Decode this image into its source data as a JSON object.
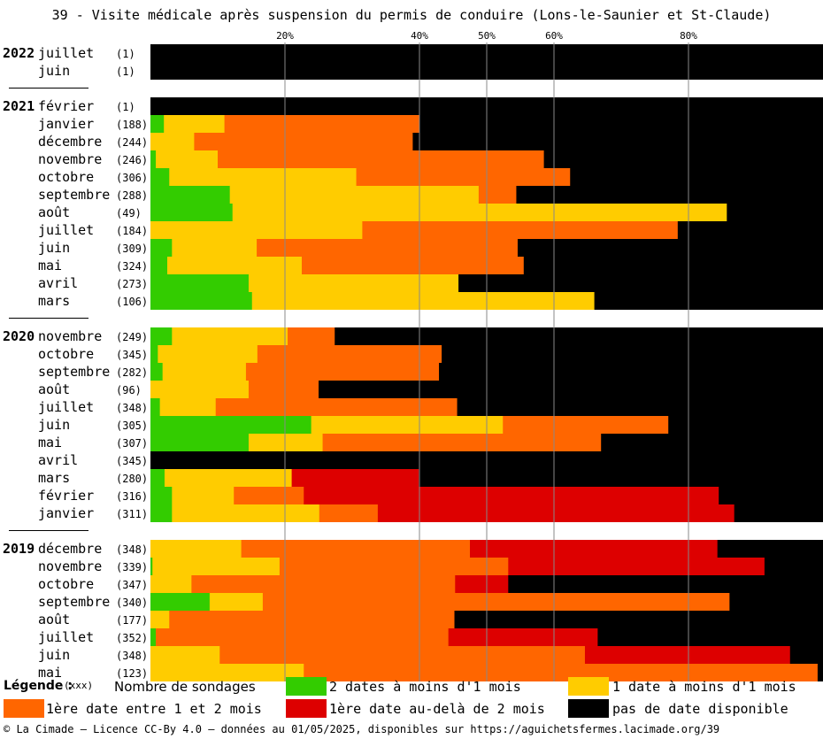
{
  "title": "39 - Visite médicale après suspension du permis de conduire (Lons-le-Saunier et St-Claude)",
  "footer": "© La Cimade – Licence CC-By 4.0 – données au 01/05/2025, disponibles sur https://aguichetsfermes.lacimade.org/39",
  "legend": {
    "title": "Légende :",
    "count_note": "(xxx)",
    "count_desc": "Nombre de sondages",
    "items": [
      {
        "label": "2 dates à moins d'1 mois",
        "color": "#33cc00"
      },
      {
        "label": "1 date à moins d'1 mois",
        "color": "#ffcc00"
      },
      {
        "label": "1ère date entre 1 et 2 mois",
        "color": "#ff6600"
      },
      {
        "label": "1ère date au-delà de 2 mois",
        "color": "#dd0000"
      },
      {
        "label": "pas de date disponible",
        "color": "#000000"
      }
    ]
  },
  "chart_data": {
    "type": "bar",
    "orientation": "horizontal",
    "stacked": true,
    "unit": "percent",
    "xlim": [
      0,
      100
    ],
    "x_ticks": [
      20,
      40,
      50,
      60,
      80
    ],
    "x_tick_labels": [
      "20%",
      "40%",
      "50%",
      "60%",
      "80%"
    ],
    "series_colors": [
      "#33cc00",
      "#ffcc00",
      "#ff6600",
      "#dd0000",
      "#000000"
    ],
    "groups": [
      {
        "year": "2022",
        "rows": [
          {
            "month": "juillet",
            "count": "(1)",
            "values": [
              0,
              0,
              0,
              0,
              100
            ]
          },
          {
            "month": "juin",
            "count": "(1)",
            "values": [
              0,
              0,
              0,
              0,
              100
            ]
          }
        ]
      },
      {
        "year": "2021",
        "rows": [
          {
            "month": "février",
            "count": "(1)",
            "values": [
              0,
              0,
              0,
              0,
              100
            ]
          },
          {
            "month": "janvier",
            "count": "(188)",
            "values": [
              2,
              9,
              29,
              0,
              60
            ]
          },
          {
            "month": "décembre",
            "count": "(244)",
            "values": [
              0,
              6.5,
              32.5,
              0,
              61
            ]
          },
          {
            "month": "novembre",
            "count": "(246)",
            "values": [
              0.8,
              9.2,
              48.5,
              0,
              41.5
            ]
          },
          {
            "month": "octobre",
            "count": "(306)",
            "values": [
              2.8,
              27.8,
              31.8,
              0,
              37.6
            ]
          },
          {
            "month": "septembre",
            "count": "(288)",
            "values": [
              11.8,
              37,
              5.6,
              0,
              45.6
            ]
          },
          {
            "month": "août",
            "count": "(49)",
            "values": [
              12.2,
              73.5,
              0,
              0,
              14.3
            ]
          },
          {
            "month": "juillet",
            "count": "(184)",
            "values": [
              0,
              31.5,
              46.9,
              0,
              21.6
            ]
          },
          {
            "month": "juin",
            "count": "(309)",
            "values": [
              3.2,
              12.6,
              38.8,
              0,
              45.4
            ]
          },
          {
            "month": "mai",
            "count": "(324)",
            "values": [
              2.5,
              20,
              33,
              0,
              44.5
            ]
          },
          {
            "month": "avril",
            "count": "(273)",
            "values": [
              14.6,
              31.2,
              0,
              0,
              54.2
            ]
          },
          {
            "month": "mars",
            "count": "(106)",
            "values": [
              15.1,
              50.9,
              0,
              0,
              34
            ]
          }
        ]
      },
      {
        "year": "2020",
        "rows": [
          {
            "month": "novembre",
            "count": "(249)",
            "values": [
              3.2,
              17.2,
              7,
              0,
              72.6
            ]
          },
          {
            "month": "octobre",
            "count": "(345)",
            "values": [
              1.1,
              14.8,
              27.4,
              0,
              56.7
            ]
          },
          {
            "month": "septembre",
            "count": "(282)",
            "values": [
              1.8,
              12.4,
              28.7,
              0,
              57.1
            ]
          },
          {
            "month": "août",
            "count": "(96)",
            "values": [
              0,
              14.6,
              10.4,
              0,
              75
            ]
          },
          {
            "month": "juillet",
            "count": "(348)",
            "values": [
              1.4,
              8.3,
              35.9,
              0,
              54.4
            ]
          },
          {
            "month": "juin",
            "count": "(305)",
            "values": [
              23.9,
              28.5,
              24.6,
              0,
              23
            ]
          },
          {
            "month": "mai",
            "count": "(307)",
            "values": [
              14.6,
              11,
              41.4,
              0,
              33
            ]
          },
          {
            "month": "avril",
            "count": "(345)",
            "values": [
              0,
              0,
              0,
              0,
              100
            ]
          },
          {
            "month": "mars",
            "count": "(280)",
            "values": [
              2.1,
              18.9,
              0,
              18.9,
              60.1
            ]
          },
          {
            "month": "février",
            "count": "(316)",
            "values": [
              3.2,
              9.2,
              10.4,
              61.7,
              15.5
            ]
          },
          {
            "month": "janvier",
            "count": "(311)",
            "values": [
              3.2,
              21.9,
              8.7,
              53,
              13.2
            ]
          }
        ]
      },
      {
        "year": "2019",
        "rows": [
          {
            "month": "décembre",
            "count": "(348)",
            "values": [
              0,
              13.5,
              34,
              36.8,
              15.7
            ]
          },
          {
            "month": "novembre",
            "count": "(339)",
            "values": [
              0.3,
              18.9,
              34,
              38.1,
              8.7
            ]
          },
          {
            "month": "octobre",
            "count": "(347)",
            "values": [
              0,
              6.1,
              39.2,
              7.9,
              46.8
            ]
          },
          {
            "month": "septembre",
            "count": "(340)",
            "values": [
              8.8,
              7.9,
              69.4,
              0,
              13.9
            ]
          },
          {
            "month": "août",
            "count": "(177)",
            "values": [
              0,
              2.8,
              42.4,
              0,
              54.8
            ]
          },
          {
            "month": "juillet",
            "count": "(352)",
            "values": [
              0.8,
              0,
              43.5,
              22.2,
              33.5
            ]
          },
          {
            "month": "juin",
            "count": "(348)",
            "values": [
              0,
              10.3,
              54.3,
              30.5,
              4.9
            ]
          },
          {
            "month": "mai",
            "count": "(123)",
            "values": [
              0,
              22.8,
              76.4,
              0,
              0.8
            ]
          }
        ]
      }
    ]
  }
}
